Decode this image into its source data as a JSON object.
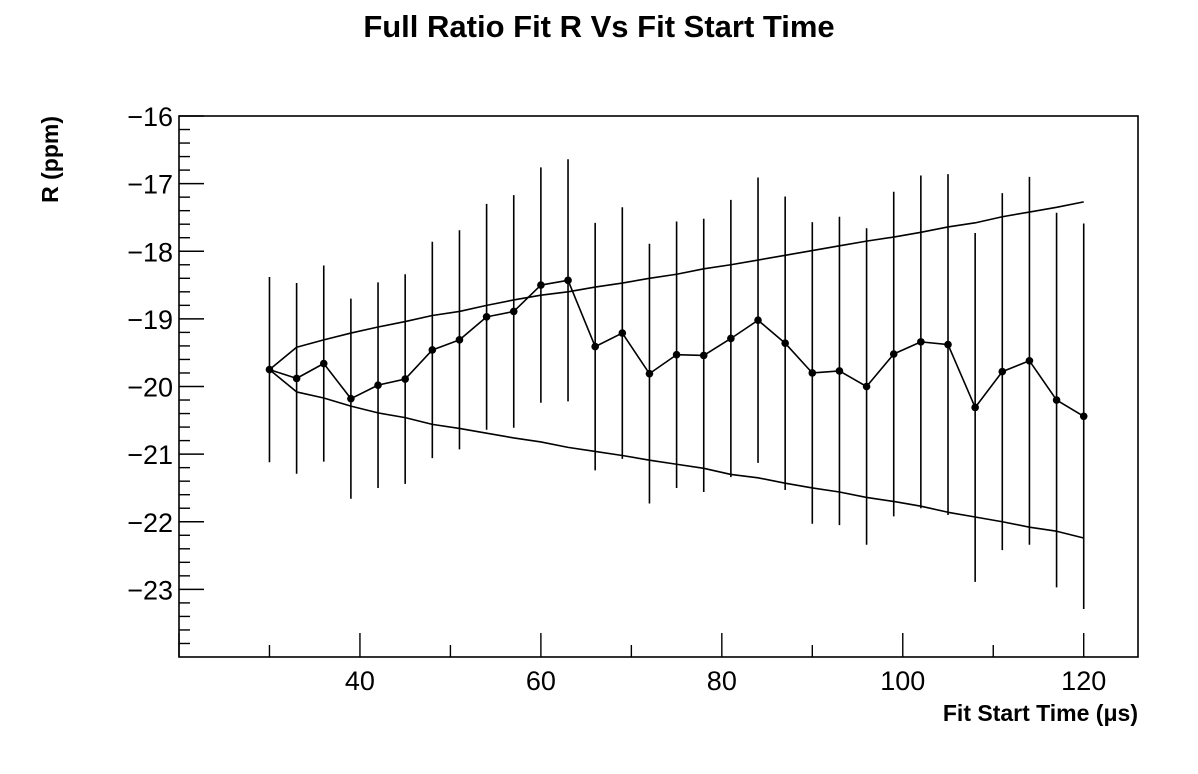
{
  "chart_data": {
    "type": "scatter",
    "title": "Full Ratio Fit R Vs Fit Start Time",
    "xlabel": "Fit Start Time (μs)",
    "ylabel": "R (ppm)",
    "xlim": [
      20,
      126
    ],
    "ylim": [
      -24,
      -16
    ],
    "x_ticks": [
      "40",
      "60",
      "80",
      "100",
      "120"
    ],
    "y_ticks": [
      "−16",
      "−17",
      "−18",
      "−19",
      "−20",
      "−21",
      "−22",
      "−23"
    ],
    "series": [
      {
        "style": "markers-with-error-bars",
        "x": [
          30,
          33,
          36,
          39,
          42,
          45,
          48,
          51,
          54,
          57,
          60,
          63,
          66,
          69,
          72,
          75,
          78,
          81,
          84,
          87,
          90,
          93,
          96,
          99,
          102,
          105,
          108,
          111,
          114,
          117,
          120
        ],
        "y": [
          -19.75,
          -19.88,
          -19.66,
          -20.18,
          -19.98,
          -19.89,
          -19.46,
          -19.31,
          -18.97,
          -18.89,
          -18.5,
          -18.43,
          -19.41,
          -19.21,
          -19.81,
          -19.53,
          -19.54,
          -19.29,
          -19.02,
          -19.36,
          -19.8,
          -19.77,
          -20.0,
          -19.52,
          -19.34,
          -19.38,
          -20.31,
          -19.78,
          -19.62,
          -20.2,
          -20.44
        ],
        "y_err": [
          1.37,
          1.41,
          1.45,
          1.48,
          1.52,
          1.55,
          1.6,
          1.62,
          1.67,
          1.72,
          1.74,
          1.79,
          1.83,
          1.86,
          1.92,
          1.97,
          2.02,
          2.05,
          2.11,
          2.17,
          2.23,
          2.28,
          2.34,
          2.4,
          2.46,
          2.52,
          2.58,
          2.64,
          2.72,
          2.77,
          2.85
        ]
      },
      {
        "style": "line",
        "x": [
          30,
          33,
          36,
          39,
          42,
          45,
          48,
          51,
          54,
          57,
          60,
          63,
          66,
          69,
          72,
          75,
          78,
          81,
          84,
          87,
          90,
          93,
          96,
          99,
          102,
          105,
          108,
          111,
          114,
          117,
          120
        ],
        "y": [
          -19.75,
          -19.42,
          -19.31,
          -19.21,
          -19.12,
          -19.04,
          -18.95,
          -18.89,
          -18.8,
          -18.72,
          -18.65,
          -18.6,
          -18.53,
          -18.47,
          -18.4,
          -18.34,
          -18.26,
          -18.2,
          -18.13,
          -18.06,
          -17.99,
          -17.92,
          -17.85,
          -17.79,
          -17.72,
          -17.64,
          -17.58,
          -17.49,
          -17.42,
          -17.35,
          -17.27
        ]
      },
      {
        "style": "line",
        "x": [
          30,
          33,
          36,
          39,
          42,
          45,
          48,
          51,
          54,
          57,
          60,
          63,
          66,
          69,
          72,
          75,
          78,
          81,
          84,
          87,
          90,
          93,
          96,
          99,
          102,
          105,
          108,
          111,
          114,
          117,
          120
        ],
        "y": [
          -19.75,
          -20.08,
          -20.17,
          -20.29,
          -20.39,
          -20.46,
          -20.56,
          -20.62,
          -20.69,
          -20.76,
          -20.82,
          -20.9,
          -20.96,
          -21.02,
          -21.09,
          -21.15,
          -21.21,
          -21.3,
          -21.35,
          -21.43,
          -21.5,
          -21.56,
          -21.64,
          -21.7,
          -21.77,
          -21.86,
          -21.93,
          -22.0,
          -22.08,
          -22.14,
          -22.24
        ]
      }
    ],
    "grid": false,
    "legend": "none"
  }
}
